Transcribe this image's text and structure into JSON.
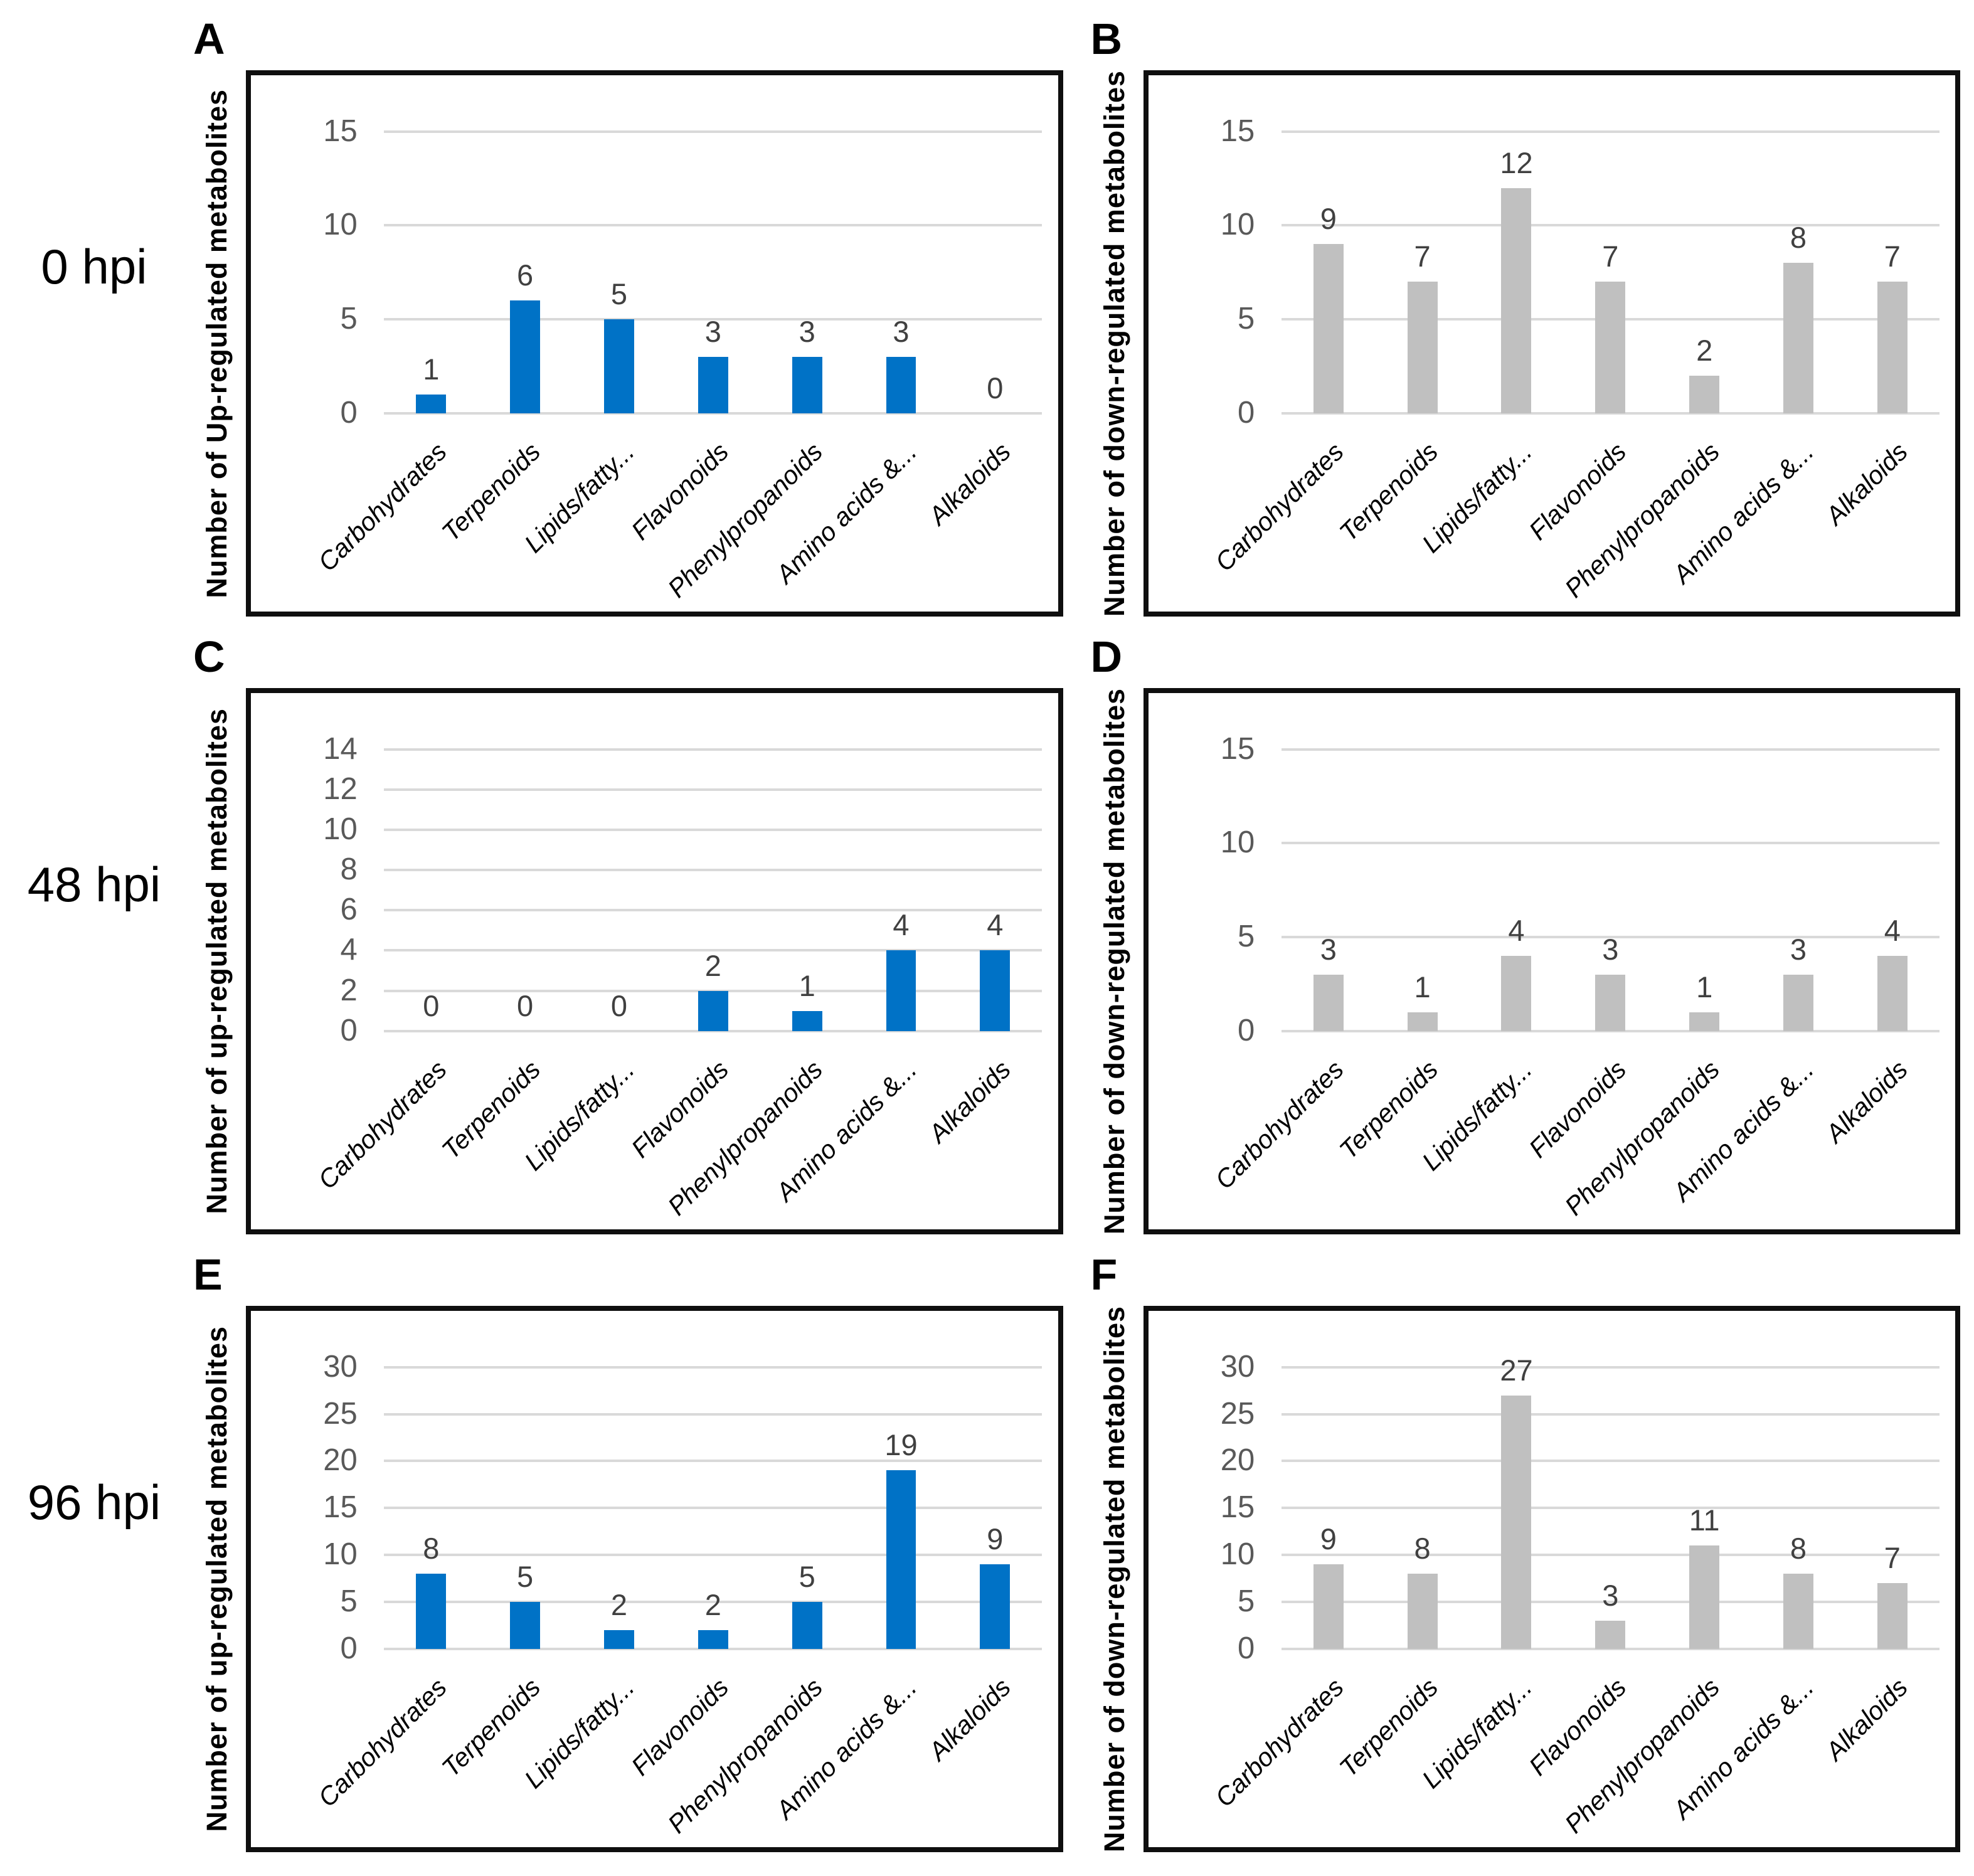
{
  "row_labels": [
    "0 hpi",
    "48 hpi",
    "96 hpi"
  ],
  "categories": [
    "Carbohydrates",
    "Terpenoids",
    "Lipids/fatty...",
    "Flavonoids",
    "Phenylpropanoids",
    "Amino acids &...",
    "Alkaloids"
  ],
  "colors": {
    "up_bar": "#0072C6",
    "down_bar": "#C0C0C0",
    "gridline": "#D9D9D9",
    "tick_label": "#595959",
    "value_label": "#404040",
    "panel_border": "#0f0f0f"
  },
  "chart_data": [
    {
      "panel": "A",
      "row_label": "0 hpi",
      "type": "bar",
      "title": "",
      "xlabel": "",
      "ylabel": "Number of Up-regulated metabolites",
      "categories": [
        "Carbohydrates",
        "Terpenoids",
        "Lipids/fatty...",
        "Flavonoids",
        "Phenylpropanoids",
        "Amino acids &...",
        "Alkaloids"
      ],
      "values": [
        1,
        6,
        5,
        3,
        3,
        3,
        0
      ],
      "yticks": [
        0,
        5,
        10,
        15
      ],
      "ylim": [
        0,
        15
      ],
      "grid": true,
      "legend": "none",
      "bar_color": "#0072C6"
    },
    {
      "panel": "B",
      "row_label": "0 hpi",
      "type": "bar",
      "title": "",
      "xlabel": "",
      "ylabel": "Number of down-regulated metabolites",
      "categories": [
        "Carbohydrates",
        "Terpenoids",
        "Lipids/fatty...",
        "Flavonoids",
        "Phenylpropanoids",
        "Amino acids &...",
        "Alkaloids"
      ],
      "values": [
        9,
        7,
        12,
        7,
        2,
        8,
        7
      ],
      "yticks": [
        0,
        5,
        10,
        15
      ],
      "ylim": [
        0,
        15
      ],
      "grid": true,
      "legend": "none",
      "bar_color": "#C0C0C0"
    },
    {
      "panel": "C",
      "row_label": "48 hpi",
      "type": "bar",
      "title": "",
      "xlabel": "",
      "ylabel": "Number of up-regulated metabolites",
      "categories": [
        "Carbohydrates",
        "Terpenoids",
        "Lipids/fatty...",
        "Flavonoids",
        "Phenylpropanoids",
        "Amino acids &...",
        "Alkaloids"
      ],
      "values": [
        0,
        0,
        0,
        2,
        1,
        4,
        4
      ],
      "yticks": [
        0,
        2,
        4,
        6,
        8,
        10,
        12,
        14
      ],
      "ylim": [
        0,
        14
      ],
      "grid": true,
      "legend": "none",
      "bar_color": "#0072C6"
    },
    {
      "panel": "D",
      "row_label": "48 hpi",
      "type": "bar",
      "title": "",
      "xlabel": "",
      "ylabel": "Number of down-regulated metabolites",
      "categories": [
        "Carbohydrates",
        "Terpenoids",
        "Lipids/fatty...",
        "Flavonoids",
        "Phenylpropanoids",
        "Amino acids &...",
        "Alkaloids"
      ],
      "values": [
        3,
        1,
        4,
        3,
        1,
        3,
        4
      ],
      "yticks": [
        0,
        5,
        10,
        15
      ],
      "ylim": [
        0,
        15
      ],
      "grid": true,
      "legend": "none",
      "bar_color": "#C0C0C0"
    },
    {
      "panel": "E",
      "row_label": "96 hpi",
      "type": "bar",
      "title": "",
      "xlabel": "",
      "ylabel": "Number of up-regulated metabolites",
      "categories": [
        "Carbohydrates",
        "Terpenoids",
        "Lipids/fatty...",
        "Flavonoids",
        "Phenylpropanoids",
        "Amino acids &...",
        "Alkaloids"
      ],
      "values": [
        8,
        5,
        2,
        2,
        5,
        19,
        9
      ],
      "yticks": [
        0,
        5,
        10,
        15,
        20,
        25,
        30
      ],
      "ylim": [
        0,
        30
      ],
      "grid": true,
      "legend": "none",
      "bar_color": "#0072C6"
    },
    {
      "panel": "F",
      "row_label": "96 hpi",
      "type": "bar",
      "title": "",
      "xlabel": "",
      "ylabel": "Number of down-regulated metabolites",
      "categories": [
        "Carbohydrates",
        "Terpenoids",
        "Lipids/fatty...",
        "Flavonoids",
        "Phenylpropanoids",
        "Amino acids &...",
        "Alkaloids"
      ],
      "values": [
        9,
        8,
        27,
        3,
        11,
        8,
        7
      ],
      "yticks": [
        0,
        5,
        10,
        15,
        20,
        25,
        30
      ],
      "ylim": [
        0,
        30
      ],
      "grid": true,
      "legend": "none",
      "bar_color": "#C0C0C0"
    }
  ]
}
